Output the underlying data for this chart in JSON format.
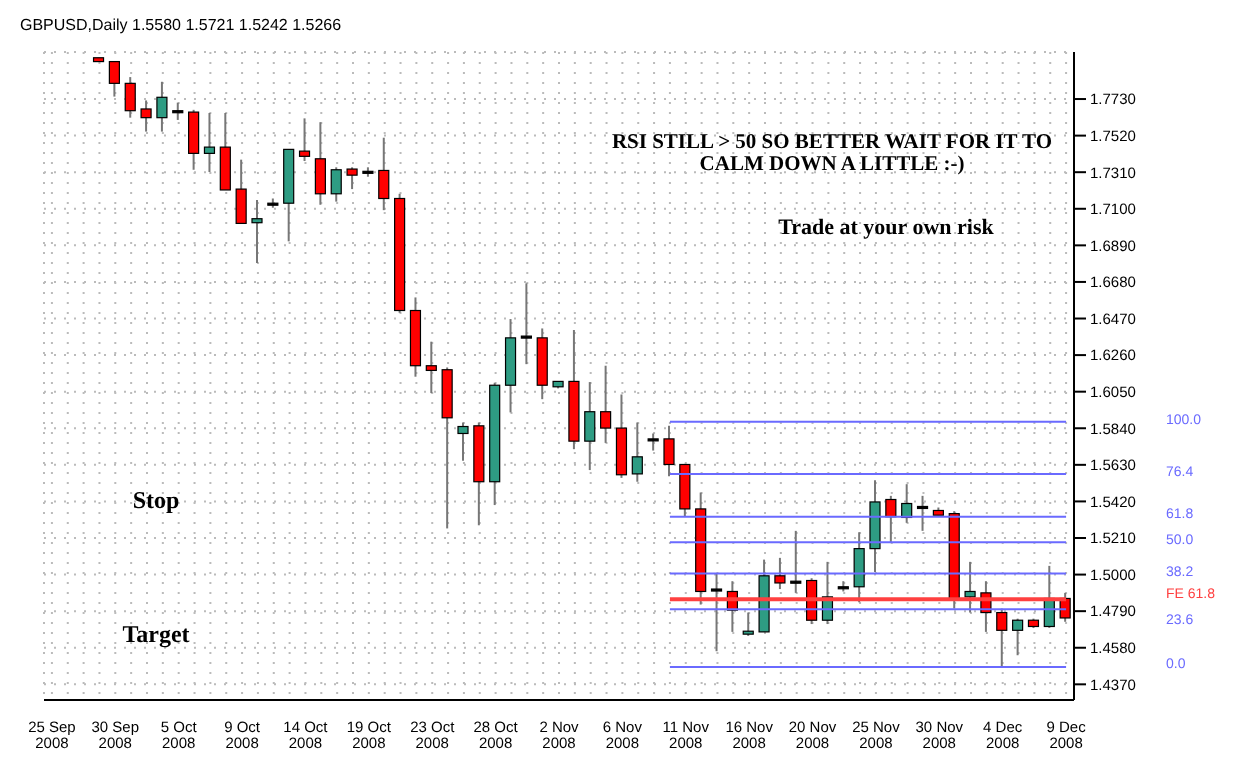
{
  "chart_data": {
    "type": "candlestick",
    "title": "GBPUSD,Daily  1.5580 1.5721 1.5242 1.5266",
    "categories": [
      "25 Sep 2008",
      null,
      null,
      null,
      "30 Sep 2008",
      null,
      null,
      null,
      "5 Oct 2008",
      null,
      null,
      null,
      "9 Oct 2008",
      null,
      null,
      null,
      "14 Oct 2008",
      null,
      null,
      null,
      "19 Oct 2008",
      null,
      null,
      null,
      "23 Oct 2008",
      null,
      null,
      null,
      "28 Oct 2008",
      null,
      null,
      null,
      "2 Nov 2008",
      null,
      null,
      null,
      "6 Nov 2008",
      null,
      null,
      null,
      "11 Nov 2008",
      null,
      null,
      null,
      "16 Nov 2008",
      null,
      null,
      null,
      "20 Nov 2008",
      null,
      null,
      null,
      "25 Nov 2008",
      null,
      null,
      null,
      "30 Nov 2008",
      null,
      null,
      null,
      "4 Dec 2008",
      null,
      null,
      null,
      "9 Dec 2008"
    ],
    "ohlc": [
      null,
      null,
      null,
      [
        1.7967,
        1.7967,
        1.7945,
        1.7945
      ],
      [
        1.7945,
        1.7945,
        1.7744,
        1.782
      ],
      [
        1.782,
        1.7856,
        1.7623,
        1.7663
      ],
      [
        1.7673,
        1.7722,
        1.7543,
        1.7623
      ],
      [
        1.7623,
        1.7829,
        1.7543,
        1.774
      ],
      [
        1.7663,
        1.7709,
        1.761,
        1.7663
      ],
      [
        1.7655,
        1.7668,
        1.7324,
        1.7418
      ],
      [
        1.7418,
        1.765,
        1.7311,
        1.7454
      ],
      [
        1.7454,
        1.765,
        1.7208,
        1.7208
      ],
      [
        1.7213,
        1.7382,
        1.7016,
        1.7016
      ],
      [
        1.702,
        1.715,
        1.6788,
        1.7043
      ],
      [
        1.7132,
        1.7159,
        1.7106,
        1.7132
      ],
      [
        1.7132,
        1.7441,
        1.6913,
        1.7441
      ],
      [
        1.7431,
        1.7619,
        1.7374,
        1.7401
      ],
      [
        1.7387,
        1.7597,
        1.7123,
        1.7186
      ],
      [
        1.7186,
        1.7338,
        1.7141,
        1.7324
      ],
      [
        1.7328,
        1.7338,
        1.7213,
        1.7293
      ],
      [
        1.7315,
        1.7338,
        1.7284,
        1.7315
      ],
      [
        1.732,
        1.7508,
        1.7092,
        1.7159
      ],
      [
        1.7159,
        1.7186,
        1.6503,
        1.6516
      ],
      [
        1.6516,
        1.6591,
        1.6136,
        1.6199
      ],
      [
        1.6199,
        1.6337,
        1.6042,
        1.6172
      ],
      [
        1.6176,
        1.6189,
        1.5265,
        1.59
      ],
      [
        1.581,
        1.5873,
        1.5653,
        1.585
      ],
      [
        1.5854,
        1.5873,
        1.5283,
        1.5533
      ],
      [
        1.5533,
        1.6101,
        1.5399,
        1.6087
      ],
      [
        1.6087,
        1.6467,
        1.5931,
        1.6359
      ],
      [
        1.6369,
        1.6672,
        1.6208,
        1.6369
      ],
      [
        1.6359,
        1.6413,
        1.6007,
        1.6087
      ],
      [
        1.6078,
        1.6109,
        1.6069,
        1.6109
      ],
      [
        1.6109,
        1.6404,
        1.572,
        1.5766
      ],
      [
        1.5766,
        1.6105,
        1.56,
        1.5935
      ],
      [
        1.5935,
        1.6199,
        1.5756,
        1.5841
      ],
      [
        1.5841,
        1.6034,
        1.5555,
        1.5573
      ],
      [
        1.5578,
        1.5873,
        1.5533,
        1.5676
      ],
      [
        1.5779,
        1.581,
        1.5712,
        1.5779
      ],
      [
        1.5779,
        1.5854,
        1.5565,
        1.5632
      ],
      [
        1.5632,
        1.5632,
        1.5332,
        1.5377
      ],
      [
        1.5377,
        1.5471,
        1.4828,
        1.4903
      ],
      [
        1.4917,
        1.5006,
        1.456,
        1.4917
      ],
      [
        1.4903,
        1.4962,
        1.4671,
        1.4796
      ],
      [
        1.4658,
        1.4782,
        1.4648,
        1.4675
      ],
      [
        1.4671,
        1.5086,
        1.4671,
        1.4993
      ],
      [
        1.4993,
        1.5096,
        1.4917,
        1.4952
      ],
      [
        1.4962,
        1.5251,
        1.4895,
        1.4962
      ],
      [
        1.4966,
        1.4979,
        1.4716,
        1.4738
      ],
      [
        1.4738,
        1.5073,
        1.4716,
        1.4872
      ],
      [
        1.493,
        1.4962,
        1.4903,
        1.493
      ],
      [
        1.493,
        1.5243,
        1.4841,
        1.5149
      ],
      [
        1.5149,
        1.5542,
        1.5015,
        1.5417
      ],
      [
        1.5431,
        1.5452,
        1.5184,
        1.5332
      ],
      [
        1.5328,
        1.5519,
        1.5297,
        1.5408
      ],
      [
        1.5391,
        1.5452,
        1.5251,
        1.5391
      ],
      [
        1.5368,
        1.5385,
        1.5341,
        1.5341
      ],
      [
        1.535,
        1.5364,
        1.4805,
        1.4863
      ],
      [
        1.4872,
        1.5073,
        1.4782,
        1.4903
      ],
      [
        1.4895,
        1.4962,
        1.4671,
        1.4782
      ],
      [
        1.4782,
        1.4805,
        1.447,
        1.468
      ],
      [
        1.468,
        1.4747,
        1.4537,
        1.4738
      ],
      [
        1.4738,
        1.4747,
        1.4693,
        1.4702
      ],
      [
        1.4702,
        1.505,
        1.4694,
        1.4863
      ],
      [
        1.4863,
        1.4895,
        1.4729,
        1.4751
      ]
    ],
    "colors": [
      null,
      null,
      null,
      "#ff0000",
      "#ff0000",
      "#ff0000",
      "#ff0000",
      "#2e9c83",
      "#000000",
      "#ff0000",
      "#2e9c83",
      "#ff0000",
      "#ff0000",
      "#2e9c83",
      "#000000",
      "#2e9c83",
      "#ff0000",
      "#ff0000",
      "#2e9c83",
      "#ff0000",
      "#000000",
      "#ff0000",
      "#ff0000",
      "#ff0000",
      "#ff0000",
      "#ff0000",
      "#2e9c83",
      "#ff0000",
      "#2e9c83",
      "#2e9c83",
      "#000000",
      "#ff0000",
      "#2e9c83",
      "#ff0000",
      "#2e9c83",
      "#ff0000",
      "#ff0000",
      "#2e9c83",
      "#000000",
      "#ff0000",
      "#ff0000",
      "#ff0000",
      "#000000",
      "#ff0000",
      "#2e9c83",
      "#2e9c83",
      "#ff0000",
      "#000000",
      "#ff0000",
      "#2e9c83",
      "#000000",
      "#2e9c83",
      "#2e9c83",
      "#ff0000",
      "#2e9c83",
      "#000000",
      "#ff0000",
      "#ff0000",
      "#2e9c83",
      "#ff0000",
      "#ff0000",
      "#2e9c83",
      "#ff0000",
      "#2e9c83",
      "#ff0000"
    ],
    "ylim": [
      1.428,
      1.8
    ],
    "yticks": [
      {
        "value": 1.437,
        "label": "1.4370"
      },
      {
        "value": 1.458,
        "label": "1.4580"
      },
      {
        "value": 1.479,
        "label": "1.4790"
      },
      {
        "value": 1.5,
        "label": "1.5000"
      },
      {
        "value": 1.521,
        "label": "1.5210"
      },
      {
        "value": 1.542,
        "label": "1.5420"
      },
      {
        "value": 1.563,
        "label": "1.5630"
      },
      {
        "value": 1.584,
        "label": "1.5840"
      },
      {
        "value": 1.605,
        "label": "1.6050"
      },
      {
        "value": 1.626,
        "label": "1.6260"
      },
      {
        "value": 1.647,
        "label": "1.6470"
      },
      {
        "value": 1.668,
        "label": "1.6680"
      },
      {
        "value": 1.689,
        "label": "1.6890"
      },
      {
        "value": 1.71,
        "label": "1.7100"
      },
      {
        "value": 1.731,
        "label": "1.7310"
      },
      {
        "value": 1.752,
        "label": "1.7520"
      },
      {
        "value": 1.773,
        "label": "1.7730"
      }
    ],
    "grid": true,
    "ref_lines": [
      {
        "axis": "y",
        "value": 1.5877,
        "color": "#6a6aff"
      },
      {
        "axis": "y",
        "value": 1.5578,
        "color": "#6a6aff"
      },
      {
        "axis": "y",
        "value": 1.5332,
        "color": "#6a6aff"
      },
      {
        "axis": "y",
        "value": 1.5185,
        "color": "#6a6aff"
      },
      {
        "axis": "y",
        "value": 1.5006,
        "color": "#6a6aff"
      },
      {
        "axis": "y",
        "value": 1.4859,
        "color": "#ff4040"
      },
      {
        "axis": "y",
        "value": 1.4801,
        "color": "#6a6aff"
      },
      {
        "axis": "y",
        "value": 1.447,
        "color": "#6a6aff"
      }
    ],
    "annotations": [
      "RSI STILL > 50 SO BETTER WAIT FOR IT TO CALM DOWN A LITTLE :-)",
      "Trade at your own risk",
      "Stop",
      "Target",
      "100.0",
      "76.4",
      "61.8",
      "50.0",
      "38.2",
      "FE 61.8",
      "23.6",
      "0.0"
    ]
  }
}
